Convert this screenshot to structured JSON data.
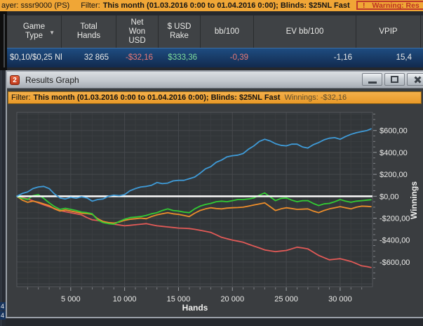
{
  "top_bar": {
    "player_text": "ayer: sssr9000 (PS)",
    "filter_label": "Filter:",
    "filter_value": "This month (01.03.2016 0:00 to 01.04.2016 0:00); Blinds: $25NL Fast",
    "warning_icon": "!",
    "warning_text": "Warning: Res"
  },
  "table": {
    "sort_arrow": "▼",
    "columns": [
      "Game Type",
      "Total Hands",
      "Net Won USD",
      "$ USD Rake",
      "bb/100",
      "EV bb/100",
      "VPIP"
    ],
    "row": {
      "game_type": "$0,10/$0,25 Nl",
      "total_hands": "32 865",
      "net_won": "-$32,16",
      "rake": "$333,36",
      "bb100": "-0,39",
      "ev_bb100": "-1,16",
      "vpip": "15,4"
    },
    "value_colors": {
      "negative": "#E97A78",
      "positive": "#7FDF9E",
      "neutral": "#ECECEA"
    }
  },
  "popup": {
    "icon_text": "2",
    "title": "Results Graph",
    "filter_bar": {
      "label": "Filter:",
      "value": "This month (01.03.2016 0:00 to 01.04.2016 0:00); Blinds: $25NL Fast",
      "winnings_label": "Winnings:",
      "winnings_value": "-$32,16"
    }
  },
  "chart_data": {
    "type": "line",
    "xlabel": "Hands",
    "ylabel": "Winnings",
    "xlim": [
      0,
      32865
    ],
    "ylim": [
      -825,
      765
    ],
    "grid": {
      "x_minor_step": 1000,
      "x_major_step": 5000,
      "y_minor_step": 50,
      "y_major_step": 200
    },
    "zero_line_color": "#FFFFFF",
    "x_ticks": [
      {
        "v": 5000,
        "label": "5 000"
      },
      {
        "v": 10000,
        "label": "10 000"
      },
      {
        "v": 15000,
        "label": "15 000"
      },
      {
        "v": 20000,
        "label": "20 000"
      },
      {
        "v": 25000,
        "label": "25 000"
      },
      {
        "v": 30000,
        "label": "30 000"
      }
    ],
    "y_ticks": [
      {
        "v": 600,
        "label": "$600,00"
      },
      {
        "v": 400,
        "label": "$400,00"
      },
      {
        "v": 200,
        "label": "$200,00"
      },
      {
        "v": 0,
        "label": "$0,00"
      },
      {
        "v": -200,
        "label": "-$200,00"
      },
      {
        "v": -400,
        "label": "-$400,00"
      },
      {
        "v": -600,
        "label": "-$600,00"
      }
    ],
    "x": [
      0,
      500,
      1000,
      1500,
      2000,
      2500,
      3000,
      3500,
      4000,
      4500,
      5000,
      5500,
      6000,
      6500,
      7000,
      7500,
      8000,
      8500,
      9000,
      9500,
      10000,
      10500,
      11000,
      11500,
      12000,
      12500,
      13000,
      13500,
      14000,
      14500,
      15000,
      15500,
      16000,
      16500,
      17000,
      17500,
      18000,
      18500,
      19000,
      19500,
      20000,
      20500,
      21000,
      21500,
      22000,
      22500,
      23000,
      23500,
      24000,
      24500,
      25000,
      25500,
      26000,
      26500,
      27000,
      27500,
      28000,
      28500,
      29000,
      29500,
      30000,
      30500,
      31000,
      31500,
      32000,
      32500,
      32865
    ],
    "series": [
      {
        "name": "blue",
        "color": "#3F9BD8",
        "values": [
          0,
          25,
          40,
          70,
          85,
          90,
          70,
          20,
          -15,
          -25,
          -10,
          -18,
          -5,
          -15,
          -45,
          -30,
          -25,
          0,
          10,
          5,
          15,
          50,
          70,
          85,
          90,
          100,
          125,
          115,
          120,
          140,
          145,
          145,
          160,
          175,
          210,
          250,
          270,
          310,
          330,
          360,
          370,
          375,
          390,
          430,
          460,
          500,
          520,
          505,
          480,
          465,
          460,
          475,
          475,
          450,
          440,
          470,
          490,
          515,
          530,
          535,
          520,
          545,
          565,
          580,
          590,
          600,
          615
        ]
      },
      {
        "name": "green",
        "color": "#33CC33",
        "values": [
          0,
          -20,
          -30,
          5,
          15,
          -20,
          -60,
          -95,
          -120,
          -110,
          -120,
          -130,
          -145,
          -150,
          -160,
          -215,
          -240,
          -250,
          -255,
          -230,
          -210,
          -195,
          -190,
          -185,
          -175,
          -160,
          -150,
          -130,
          -115,
          -130,
          -135,
          -145,
          -150,
          -115,
          -90,
          -75,
          -65,
          -50,
          -45,
          -50,
          -40,
          -30,
          -30,
          -25,
          -15,
          10,
          30,
          -5,
          -40,
          -20,
          -15,
          -35,
          -50,
          -40,
          -40,
          -65,
          -85,
          -70,
          -65,
          -50,
          -30,
          -45,
          -55,
          -45,
          -40,
          -35,
          -32
        ]
      },
      {
        "name": "orange",
        "color": "#EE8E2A",
        "values": [
          0,
          -35,
          -55,
          -45,
          -55,
          -70,
          -85,
          -115,
          -135,
          -125,
          -135,
          -145,
          -155,
          -158,
          -165,
          -205,
          -230,
          -240,
          -245,
          -235,
          -220,
          -210,
          -205,
          -200,
          -205,
          -185,
          -170,
          -160,
          -150,
          -160,
          -165,
          -175,
          -185,
          -155,
          -130,
          -115,
          -105,
          -112,
          -115,
          -108,
          -105,
          -103,
          -100,
          -90,
          -80,
          -70,
          -60,
          -95,
          -130,
          -115,
          -105,
          -112,
          -120,
          -118,
          -115,
          -135,
          -150,
          -130,
          -115,
          -105,
          -95,
          -105,
          -115,
          -100,
          -90,
          -92,
          -95
        ]
      },
      {
        "name": "red",
        "color": "#E25A57",
        "values": [
          0,
          -12,
          -25,
          -42,
          -60,
          -78,
          -95,
          -112,
          -130,
          -140,
          -150,
          -160,
          -170,
          -195,
          -215,
          -222,
          -230,
          -242,
          -255,
          -262,
          -270,
          -265,
          -260,
          -255,
          -250,
          -260,
          -270,
          -275,
          -280,
          -285,
          -290,
          -292,
          -295,
          -302,
          -310,
          -320,
          -330,
          -352,
          -375,
          -388,
          -400,
          -410,
          -420,
          -438,
          -455,
          -472,
          -490,
          -498,
          -505,
          -500,
          -495,
          -480,
          -465,
          -472,
          -480,
          -510,
          -540,
          -560,
          -580,
          -575,
          -570,
          -582,
          -595,
          -615,
          -635,
          -642,
          -650
        ]
      }
    ]
  },
  "underlying": {
    "fragments": [
      "4",
      "4"
    ]
  }
}
